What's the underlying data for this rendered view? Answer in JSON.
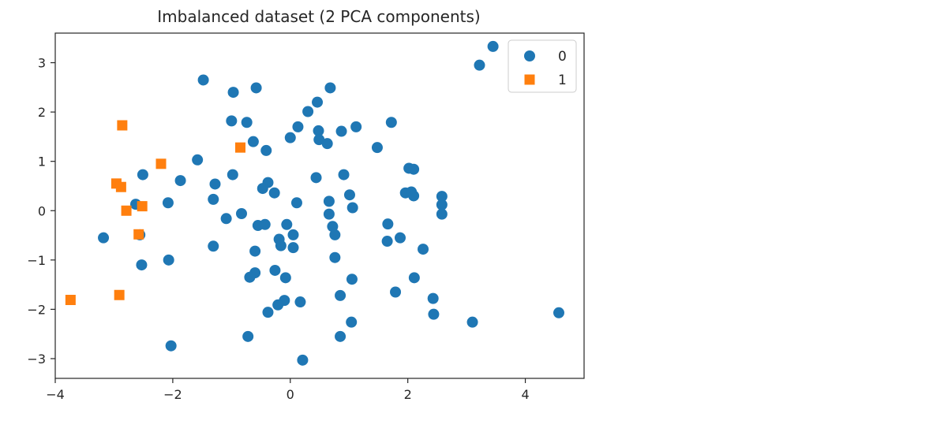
{
  "chart_data": {
    "type": "scatter",
    "title": "Imbalanced dataset (2 PCA components)",
    "xlabel": "",
    "ylabel": "",
    "xlim": [
      -4.0,
      5.0
    ],
    "ylim": [
      -3.4,
      3.6
    ],
    "xticks": [
      -4,
      -2,
      0,
      2,
      4
    ],
    "yticks": [
      -3,
      -2,
      -1,
      0,
      1,
      2,
      3
    ],
    "xtick_labels": [
      "−4",
      "−2",
      "0",
      "2",
      "4"
    ],
    "ytick_labels": [
      "−3",
      "−2",
      "−1",
      "0",
      "1",
      "2",
      "3"
    ],
    "grid": false,
    "legend_position": "top-right",
    "series": [
      {
        "name": "0",
        "marker": "circle",
        "color": "#1f77b4",
        "points": [
          [
            3.45,
            3.33
          ],
          [
            3.22,
            2.95
          ],
          [
            -1.48,
            2.65
          ],
          [
            -0.97,
            2.4
          ],
          [
            -0.58,
            2.49
          ],
          [
            0.68,
            2.49
          ],
          [
            0.46,
            2.2
          ],
          [
            0.3,
            2.01
          ],
          [
            -1.0,
            1.82
          ],
          [
            -0.74,
            1.79
          ],
          [
            1.72,
            1.79
          ],
          [
            0.13,
            1.7
          ],
          [
            1.12,
            1.7
          ],
          [
            0.48,
            1.62
          ],
          [
            0.87,
            1.61
          ],
          [
            0.0,
            1.48
          ],
          [
            0.49,
            1.44
          ],
          [
            0.63,
            1.36
          ],
          [
            -0.63,
            1.4
          ],
          [
            -0.41,
            1.22
          ],
          [
            1.48,
            1.28
          ],
          [
            -1.58,
            1.03
          ],
          [
            2.02,
            0.86
          ],
          [
            2.1,
            0.84
          ],
          [
            -2.51,
            0.73
          ],
          [
            -0.98,
            0.73
          ],
          [
            0.91,
            0.73
          ],
          [
            0.44,
            0.67
          ],
          [
            -1.87,
            0.61
          ],
          [
            -1.28,
            0.54
          ],
          [
            -0.38,
            0.57
          ],
          [
            -0.47,
            0.45
          ],
          [
            -0.27,
            0.36
          ],
          [
            1.96,
            0.36
          ],
          [
            2.06,
            0.38
          ],
          [
            2.1,
            0.3
          ],
          [
            1.01,
            0.32
          ],
          [
            2.58,
            0.29
          ],
          [
            -1.31,
            0.23
          ],
          [
            0.66,
            0.19
          ],
          [
            -2.08,
            0.16
          ],
          [
            0.11,
            0.16
          ],
          [
            2.58,
            0.12
          ],
          [
            -2.63,
            0.13
          ],
          [
            1.06,
            0.06
          ],
          [
            -0.83,
            -0.06
          ],
          [
            0.66,
            -0.07
          ],
          [
            2.58,
            -0.07
          ],
          [
            -1.09,
            -0.16
          ],
          [
            1.66,
            -0.27
          ],
          [
            -0.55,
            -0.3
          ],
          [
            -0.43,
            -0.28
          ],
          [
            -0.06,
            -0.28
          ],
          [
            0.72,
            -0.32
          ],
          [
            0.76,
            -0.49
          ],
          [
            0.05,
            -0.49
          ],
          [
            -2.56,
            -0.49
          ],
          [
            -3.18,
            -0.55
          ],
          [
            -0.19,
            -0.58
          ],
          [
            1.87,
            -0.55
          ],
          [
            1.65,
            -0.62
          ],
          [
            -0.16,
            -0.71
          ],
          [
            -1.31,
            -0.72
          ],
          [
            0.05,
            -0.75
          ],
          [
            2.26,
            -0.78
          ],
          [
            -0.6,
            -0.82
          ],
          [
            0.76,
            -0.95
          ],
          [
            -2.07,
            -1.0
          ],
          [
            -2.53,
            -1.1
          ],
          [
            -0.26,
            -1.21
          ],
          [
            -0.6,
            -1.26
          ],
          [
            -0.69,
            -1.35
          ],
          [
            -0.08,
            -1.36
          ],
          [
            2.11,
            -1.36
          ],
          [
            1.05,
            -1.39
          ],
          [
            1.79,
            -1.65
          ],
          [
            0.85,
            -1.72
          ],
          [
            2.43,
            -1.78
          ],
          [
            -0.1,
            -1.82
          ],
          [
            0.17,
            -1.85
          ],
          [
            -0.21,
            -1.91
          ],
          [
            -0.38,
            -2.06
          ],
          [
            2.44,
            -2.1
          ],
          [
            1.04,
            -2.26
          ],
          [
            3.1,
            -2.26
          ],
          [
            4.57,
            -2.07
          ],
          [
            -0.72,
            -2.55
          ],
          [
            0.85,
            -2.55
          ],
          [
            -2.03,
            -2.74
          ],
          [
            0.21,
            -3.03
          ]
        ]
      },
      {
        "name": "1",
        "marker": "square",
        "color": "#ff7f0e",
        "points": [
          [
            -2.86,
            1.73
          ],
          [
            -0.85,
            1.28
          ],
          [
            -2.2,
            0.95
          ],
          [
            -2.96,
            0.55
          ],
          [
            -2.88,
            0.48
          ],
          [
            -2.52,
            0.09
          ],
          [
            -2.79,
            0.0
          ],
          [
            -2.58,
            -0.48
          ],
          [
            -2.91,
            -1.71
          ],
          [
            -3.74,
            -1.81
          ]
        ]
      }
    ]
  }
}
